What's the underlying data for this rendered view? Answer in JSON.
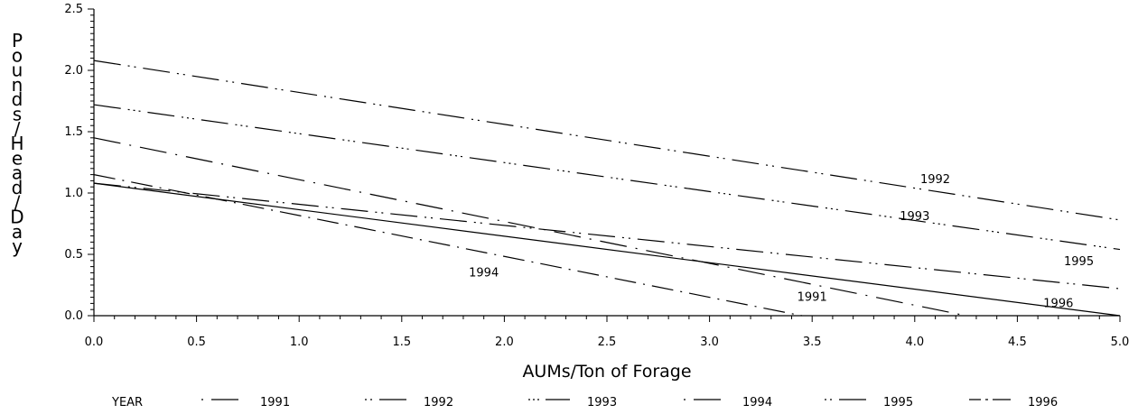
{
  "chart_data": {
    "type": "line",
    "title": "",
    "xlabel": "AUMs/Ton of Forage",
    "ylabel": "Pounds/Head/Day",
    "xlim": [
      0,
      5
    ],
    "ylim": [
      0,
      2.5
    ],
    "x_ticks": [
      "0.0",
      "0.5",
      "1.0",
      "1.5",
      "2.0",
      "2.5",
      "3.0",
      "3.5",
      "4.0",
      "4.5",
      "5.0"
    ],
    "y_ticks": [
      "0.0",
      "0.5",
      "1.0",
      "1.5",
      "2.0",
      "2.5"
    ],
    "grid": false,
    "legend": {
      "title": "YEAR",
      "placement": "bottom"
    },
    "series": [
      {
        "name": "1991",
        "x": [
          0.0,
          3.45
        ],
        "y": [
          1.15,
          0.0
        ]
      },
      {
        "name": "1992",
        "x": [
          0.0,
          5.0
        ],
        "y": [
          2.08,
          0.78
        ]
      },
      {
        "name": "1993",
        "x": [
          0.0,
          5.0
        ],
        "y": [
          1.72,
          0.54
        ]
      },
      {
        "name": "1994",
        "x": [
          0.0,
          4.25
        ],
        "y": [
          1.45,
          0.0
        ]
      },
      {
        "name": "1995",
        "x": [
          0.0,
          5.0
        ],
        "y": [
          1.08,
          0.22
        ]
      },
      {
        "name": "1996",
        "x": [
          0.0,
          5.0
        ],
        "y": [
          1.08,
          0.0
        ]
      }
    ],
    "annotations": [
      {
        "text": "1992",
        "x": 4.1,
        "y": 1.08
      },
      {
        "text": "1993",
        "x": 4.0,
        "y": 0.78
      },
      {
        "text": "1995",
        "x": 4.8,
        "y": 0.41
      },
      {
        "text": "1994",
        "x": 1.9,
        "y": 0.32
      },
      {
        "text": "1991",
        "x": 3.5,
        "y": 0.12
      },
      {
        "text": "1996",
        "x": 4.7,
        "y": 0.07
      }
    ]
  }
}
